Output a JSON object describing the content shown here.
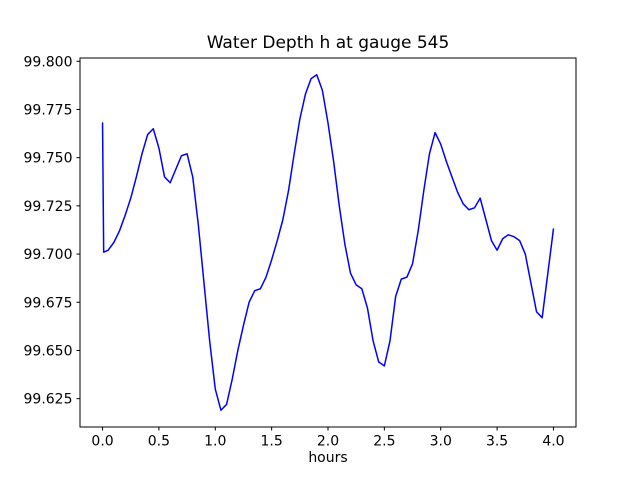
{
  "chart_data": {
    "type": "line",
    "title": "Water Depth h at gauge 545",
    "xlabel": "hours",
    "ylabel": "",
    "grid": false,
    "background": "#ffffff",
    "axes_color": "#000000",
    "line_color": "#0000ff",
    "xlim": [
      -0.2,
      4.2
    ],
    "ylim": [
      99.6103,
      99.8017
    ],
    "xticks": [
      0.0,
      0.5,
      1.0,
      1.5,
      2.0,
      2.5,
      3.0,
      3.5,
      4.0
    ],
    "xtick_labels": [
      "0.0",
      "0.5",
      "1.0",
      "1.5",
      "2.0",
      "2.5",
      "3.0",
      "3.5",
      "4.0"
    ],
    "yticks": [
      99.625,
      99.65,
      99.675,
      99.7,
      99.725,
      99.75,
      99.775,
      99.8
    ],
    "ytick_labels": [
      "99.625",
      "99.650",
      "99.675",
      "99.700",
      "99.725",
      "99.750",
      "99.775",
      "99.800"
    ],
    "series": [
      {
        "name": "h",
        "color": "#0000ff",
        "x": [
          0.0,
          0.01,
          0.05,
          0.1,
          0.15,
          0.2,
          0.25,
          0.3,
          0.35,
          0.4,
          0.45,
          0.5,
          0.55,
          0.6,
          0.65,
          0.7,
          0.75,
          0.8,
          0.85,
          0.9,
          0.95,
          1.0,
          1.05,
          1.1,
          1.15,
          1.2,
          1.25,
          1.3,
          1.35,
          1.4,
          1.45,
          1.5,
          1.55,
          1.6,
          1.65,
          1.7,
          1.75,
          1.8,
          1.85,
          1.9,
          1.95,
          2.0,
          2.05,
          2.1,
          2.15,
          2.2,
          2.25,
          2.3,
          2.35,
          2.4,
          2.45,
          2.5,
          2.55,
          2.6,
          2.65,
          2.7,
          2.75,
          2.8,
          2.85,
          2.9,
          2.95,
          3.0,
          3.05,
          3.1,
          3.15,
          3.2,
          3.25,
          3.3,
          3.35,
          3.4,
          3.45,
          3.5,
          3.55,
          3.6,
          3.65,
          3.7,
          3.75,
          3.8,
          3.85,
          3.9,
          3.95,
          4.0
        ],
        "y": [
          99.768,
          99.701,
          99.702,
          99.706,
          99.712,
          99.72,
          99.729,
          99.74,
          99.752,
          99.762,
          99.765,
          99.755,
          99.74,
          99.737,
          99.744,
          99.751,
          99.752,
          99.74,
          99.715,
          99.685,
          99.655,
          99.63,
          99.619,
          99.622,
          99.635,
          99.65,
          99.663,
          99.675,
          99.681,
          99.682,
          99.688,
          99.697,
          99.707,
          99.718,
          99.733,
          99.752,
          99.77,
          99.783,
          99.791,
          99.793,
          99.785,
          99.768,
          99.748,
          99.725,
          99.705,
          99.69,
          99.684,
          99.682,
          99.672,
          99.655,
          99.644,
          99.642,
          99.655,
          99.678,
          99.687,
          99.688,
          99.695,
          99.712,
          99.733,
          99.752,
          99.763,
          99.757,
          99.748,
          99.74,
          99.732,
          99.726,
          99.723,
          99.724,
          99.729,
          99.718,
          99.707,
          99.702,
          99.708,
          99.71,
          99.709,
          99.707,
          99.7,
          99.685,
          99.67,
          99.667,
          99.69,
          99.713
        ]
      }
    ]
  }
}
